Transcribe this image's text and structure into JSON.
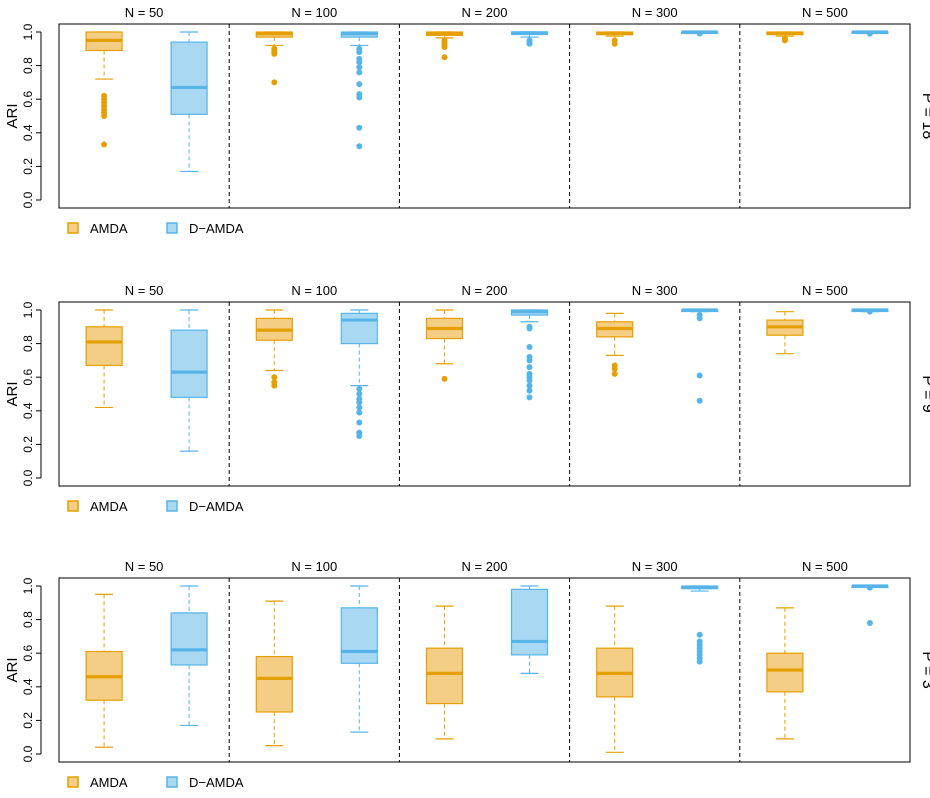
{
  "colors": {
    "amda_fill": "#F5CE85",
    "amda_stroke": "#E69F00",
    "damda_fill": "#A9D8F2",
    "damda_stroke": "#56B4E9",
    "frame": "#000000"
  },
  "chart_data": [
    {
      "type": "boxplot",
      "panel_label": "P = 18",
      "ylabel": "ARI",
      "ylim": [
        0,
        1.0
      ],
      "yticks": [
        "0.0",
        "0.2",
        "0.4",
        "0.6",
        "0.8",
        "1.0"
      ],
      "categories": [
        "N = 50",
        "N = 100",
        "N = 200",
        "N = 300",
        "N = 500"
      ],
      "legend": [
        "AMDA",
        "D−AMDA"
      ],
      "series": [
        {
          "name": "AMDA",
          "boxes": [
            {
              "min": 0.72,
              "q1": 0.89,
              "median": 0.95,
              "q3": 1.0,
              "max": 1.0,
              "outliers": [
                0.33,
                0.5,
                0.52,
                0.54,
                0.56,
                0.58,
                0.6,
                0.62
              ]
            },
            {
              "min": 0.92,
              "q1": 0.97,
              "median": 0.99,
              "q3": 1.0,
              "max": 1.0,
              "outliers": [
                0.7,
                0.87,
                0.88,
                0.89,
                0.9
              ]
            },
            {
              "min": 0.965,
              "q1": 0.98,
              "median": 0.99,
              "q3": 1.0,
              "max": 1.0,
              "outliers": [
                0.85,
                0.91,
                0.92,
                0.93,
                0.94,
                0.95
              ]
            },
            {
              "min": 0.975,
              "q1": 0.985,
              "median": 0.99,
              "q3": 1.0,
              "max": 1.0,
              "outliers": [
                0.93,
                0.95
              ]
            },
            {
              "min": 0.975,
              "q1": 0.985,
              "median": 0.99,
              "q3": 1.0,
              "max": 1.0,
              "outliers": [
                0.95,
                0.96
              ]
            }
          ]
        },
        {
          "name": "D−AMDA",
          "boxes": [
            {
              "min": 0.17,
              "q1": 0.51,
              "median": 0.67,
              "q3": 0.94,
              "max": 1.0,
              "outliers": []
            },
            {
              "min": 0.92,
              "q1": 0.97,
              "median": 0.99,
              "q3": 1.0,
              "max": 1.0,
              "outliers": [
                0.32,
                0.43,
                0.61,
                0.63,
                0.69,
                0.76,
                0.79,
                0.82,
                0.84,
                0.88,
                0.9
              ]
            },
            {
              "min": 0.97,
              "q1": 0.985,
              "median": 0.995,
              "q3": 1.0,
              "max": 1.0,
              "outliers": [
                0.93,
                0.94,
                0.95
              ]
            },
            {
              "min": 1.0,
              "q1": 1.0,
              "median": 1.0,
              "q3": 1.0,
              "max": 1.0,
              "outliers": [
                0.99
              ]
            },
            {
              "min": 1.0,
              "q1": 1.0,
              "median": 1.0,
              "q3": 1.0,
              "max": 1.0,
              "outliers": [
                0.99
              ]
            }
          ]
        }
      ]
    },
    {
      "type": "boxplot",
      "panel_label": "P = 9",
      "ylabel": "ARI",
      "ylim": [
        0,
        1.0
      ],
      "yticks": [
        "0.0",
        "0.2",
        "0.4",
        "0.6",
        "0.8",
        "1.0"
      ],
      "categories": [
        "N = 50",
        "N = 100",
        "N = 200",
        "N = 300",
        "N = 500"
      ],
      "legend": [
        "AMDA",
        "D−AMDA"
      ],
      "series": [
        {
          "name": "AMDA",
          "boxes": [
            {
              "min": 0.42,
              "q1": 0.67,
              "median": 0.81,
              "q3": 0.9,
              "max": 1.0,
              "outliers": []
            },
            {
              "min": 0.64,
              "q1": 0.82,
              "median": 0.88,
              "q3": 0.95,
              "max": 1.0,
              "outliers": [
                0.55,
                0.57,
                0.6
              ]
            },
            {
              "min": 0.68,
              "q1": 0.83,
              "median": 0.89,
              "q3": 0.95,
              "max": 1.0,
              "outliers": [
                0.59
              ]
            },
            {
              "min": 0.73,
              "q1": 0.84,
              "median": 0.89,
              "q3": 0.93,
              "max": 0.98,
              "outliers": [
                0.62,
                0.65,
                0.67
              ]
            },
            {
              "min": 0.74,
              "q1": 0.85,
              "median": 0.9,
              "q3": 0.94,
              "max": 0.99,
              "outliers": []
            }
          ]
        },
        {
          "name": "D−AMDA",
          "boxes": [
            {
              "min": 0.16,
              "q1": 0.48,
              "median": 0.63,
              "q3": 0.88,
              "max": 1.0,
              "outliers": []
            },
            {
              "min": 0.55,
              "q1": 0.8,
              "median": 0.94,
              "q3": 0.98,
              "max": 1.0,
              "outliers": [
                0.25,
                0.27,
                0.33,
                0.39,
                0.42,
                0.45,
                0.47,
                0.5,
                0.53
              ]
            },
            {
              "min": 0.93,
              "q1": 0.97,
              "median": 0.99,
              "q3": 1.0,
              "max": 1.0,
              "outliers": [
                0.48,
                0.52,
                0.55,
                0.58,
                0.6,
                0.62,
                0.66,
                0.7,
                0.72,
                0.78,
                0.89,
                0.9
              ]
            },
            {
              "min": 0.99,
              "q1": 0.995,
              "median": 1.0,
              "q3": 1.0,
              "max": 1.0,
              "outliers": [
                0.46,
                0.61,
                0.95,
                0.97
              ]
            },
            {
              "min": 0.99,
              "q1": 0.995,
              "median": 1.0,
              "q3": 1.0,
              "max": 1.0,
              "outliers": [
                0.99
              ]
            }
          ]
        }
      ]
    },
    {
      "type": "boxplot",
      "panel_label": "P = 3",
      "ylabel": "ARI",
      "ylim": [
        0,
        1.0
      ],
      "yticks": [
        "0.0",
        "0.2",
        "0.4",
        "0.6",
        "0.8",
        "1.0"
      ],
      "categories": [
        "N = 50",
        "N = 100",
        "N = 200",
        "N = 300",
        "N = 500"
      ],
      "legend": [
        "AMDA",
        "D−AMDA"
      ],
      "series": [
        {
          "name": "AMDA",
          "boxes": [
            {
              "min": 0.04,
              "q1": 0.32,
              "median": 0.46,
              "q3": 0.61,
              "max": 0.95,
              "outliers": []
            },
            {
              "min": 0.05,
              "q1": 0.25,
              "median": 0.45,
              "q3": 0.58,
              "max": 0.91,
              "outliers": []
            },
            {
              "min": 0.09,
              "q1": 0.3,
              "median": 0.48,
              "q3": 0.63,
              "max": 0.88,
              "outliers": []
            },
            {
              "min": 0.01,
              "q1": 0.34,
              "median": 0.48,
              "q3": 0.63,
              "max": 0.88,
              "outliers": []
            },
            {
              "min": 0.09,
              "q1": 0.37,
              "median": 0.5,
              "q3": 0.6,
              "max": 0.87,
              "outliers": []
            }
          ]
        },
        {
          "name": "D−AMDA",
          "boxes": [
            {
              "min": 0.17,
              "q1": 0.53,
              "median": 0.62,
              "q3": 0.84,
              "max": 1.0,
              "outliers": []
            },
            {
              "min": 0.13,
              "q1": 0.54,
              "median": 0.61,
              "q3": 0.87,
              "max": 1.0,
              "outliers": []
            },
            {
              "min": 0.48,
              "q1": 0.59,
              "median": 0.67,
              "q3": 0.98,
              "max": 1.0,
              "outliers": []
            },
            {
              "min": 0.97,
              "q1": 0.985,
              "median": 0.99,
              "q3": 1.0,
              "max": 1.0,
              "outliers": [
                0.55,
                0.57,
                0.59,
                0.61,
                0.63,
                0.65,
                0.67,
                0.71
              ]
            },
            {
              "min": 1.0,
              "q1": 1.0,
              "median": 1.0,
              "q3": 1.0,
              "max": 1.0,
              "outliers": [
                0.78,
                0.99
              ]
            }
          ]
        }
      ]
    }
  ]
}
